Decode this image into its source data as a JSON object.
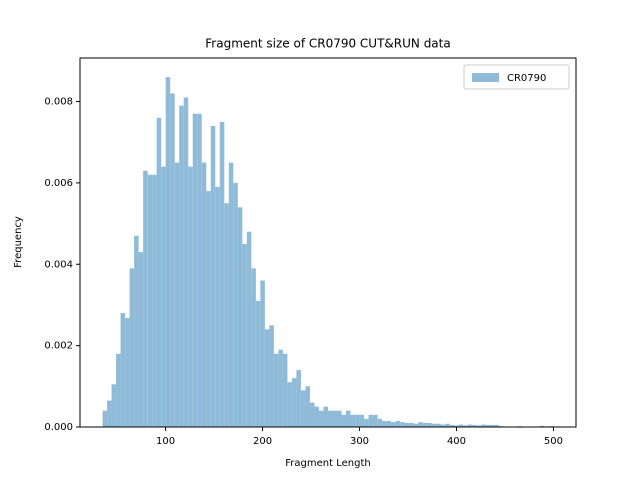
{
  "chart_data": {
    "type": "histogram",
    "title": "Fragment size of CR0790 CUT&RUN data",
    "xlabel": "Fragment Length",
    "ylabel": "Frequency",
    "bins": [
      35,
      39.65,
      44.3,
      48.95,
      53.6,
      58.25,
      62.9,
      67.55,
      72.2,
      76.85,
      81.5,
      86.15,
      90.8,
      95.45,
      100.1,
      104.75,
      109.4,
      114.05,
      118.7,
      123.35,
      128,
      132.65,
      137.3,
      141.95,
      146.6,
      151.25,
      155.9,
      160.55,
      165.2,
      169.85,
      174.5,
      179.15,
      183.8,
      188.45,
      193.1,
      197.75,
      202.4,
      207.05,
      211.7,
      216.35,
      221,
      225.65,
      230.3,
      234.95,
      239.6,
      244.25,
      248.9,
      253.55,
      258.2,
      262.85,
      267.5,
      272.15,
      276.8,
      281.45,
      286.1,
      290.75,
      295.4,
      300.05,
      304.7,
      309.35,
      314,
      318.65,
      323.3,
      327.95,
      332.6,
      337.25,
      341.9,
      346.55,
      351.2,
      355.85,
      360.5,
      365.15,
      369.8,
      374.45,
      379.1,
      383.75,
      388.4,
      393.05,
      397.7,
      402.35,
      407,
      411.65,
      416.3,
      420.95,
      425.6,
      430.25,
      434.9,
      439.55,
      444.2,
      448.85,
      453.5,
      458.15,
      462.8,
      467.45,
      472.1,
      476.75,
      481.4,
      486.05,
      490.7,
      495.35,
      500
    ],
    "series": [
      {
        "name": "CR0790",
        "color": "#8fbbd9",
        "counts": [
          0.0004,
          0.00065,
          0.00105,
          0.0018,
          0.0028,
          0.00268,
          0.0039,
          0.0047,
          0.0043,
          0.0063,
          0.0062,
          0.0062,
          0.0076,
          0.0064,
          0.0086,
          0.0082,
          0.0065,
          0.0079,
          0.0081,
          0.0064,
          0.0077,
          0.0077,
          0.0065,
          0.0058,
          0.0074,
          0.0059,
          0.0075,
          0.0055,
          0.0065,
          0.006,
          0.0054,
          0.0045,
          0.0048,
          0.0039,
          0.0031,
          0.0036,
          0.0024,
          0.0025,
          0.0018,
          0.0019,
          0.0018,
          0.0011,
          0.0012,
          0.0014,
          0.0009,
          0.001,
          0.0006,
          0.0005,
          0.0004,
          0.0005,
          0.0004,
          0.0004,
          0.0004,
          0.0003,
          0.0004,
          0.0003,
          0.0003,
          0.0003,
          0.0002,
          0.0003,
          0.0003,
          0.0002,
          0.00015,
          0.00015,
          0.00012,
          0.00015,
          0.00012,
          0.0001,
          0.0001,
          8e-05,
          0.00012,
          0.0001,
          0.0001,
          8e-05,
          8e-05,
          6e-05,
          8e-05,
          5e-05,
          4e-05,
          6e-05,
          4e-05,
          6e-05,
          5e-05,
          4e-05,
          6e-05,
          5e-05,
          5e-05,
          5e-05,
          2e-05,
          1e-05,
          1e-05,
          1e-05,
          2e-05,
          1e-05,
          1e-05,
          1e-05,
          1e-05,
          3e-05,
          1e-05,
          2e-05
        ]
      }
    ],
    "xlim": [
      11.75,
      523.25
    ],
    "xticks": [
      100,
      200,
      300,
      400,
      500
    ],
    "ylim": [
      0,
      0.00907
    ],
    "yticks": [
      {
        "value": 0,
        "label": "0.000"
      },
      {
        "value": 0.002,
        "label": "0.002"
      },
      {
        "value": 0.004,
        "label": "0.004"
      },
      {
        "value": 0.006,
        "label": "0.006"
      },
      {
        "value": 0.008,
        "label": "0.008"
      }
    ],
    "legend": "upper right"
  }
}
